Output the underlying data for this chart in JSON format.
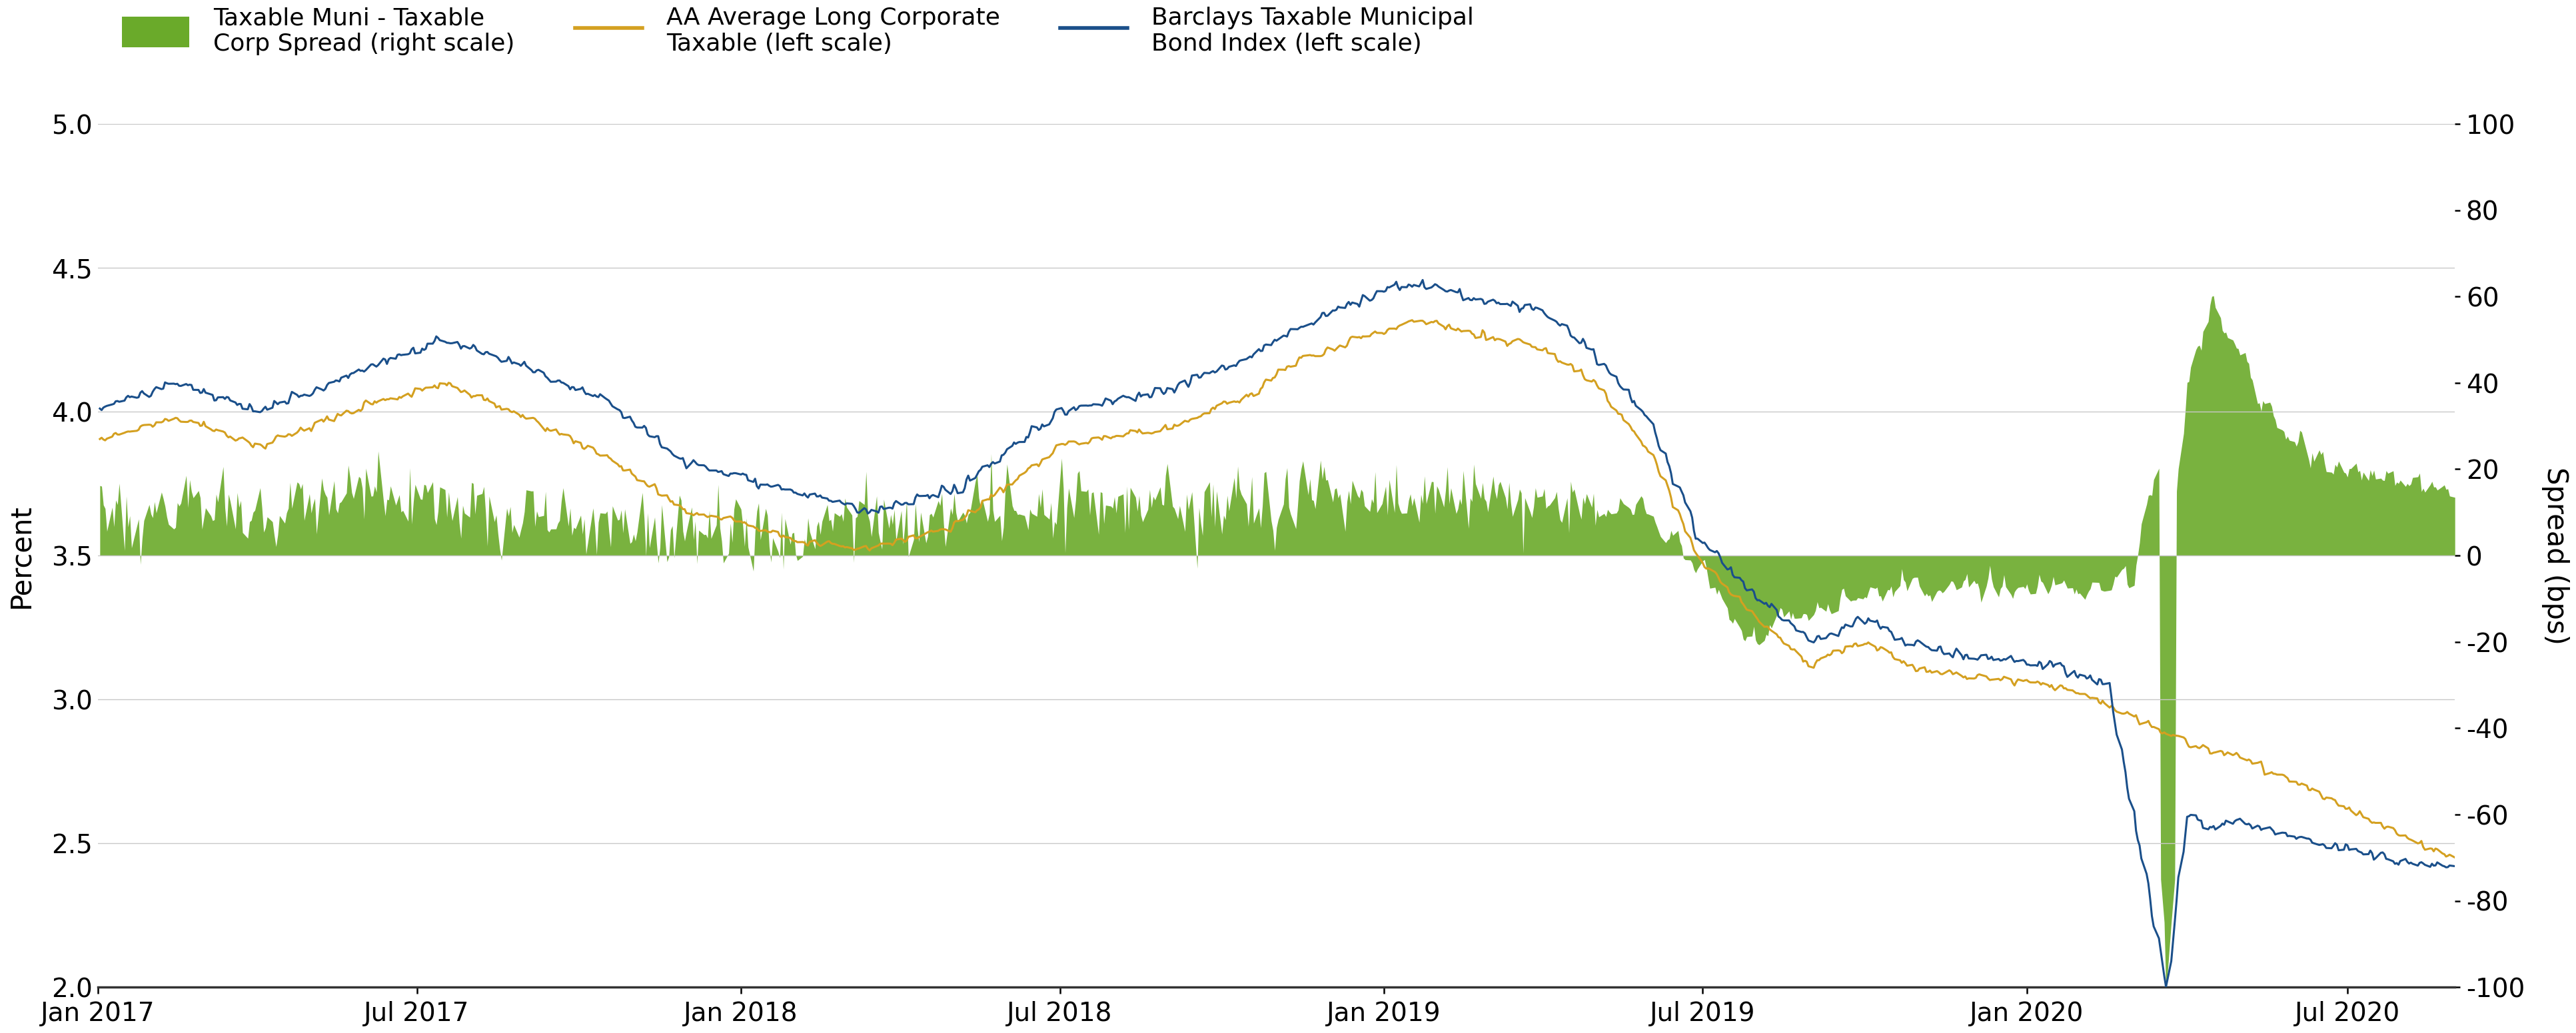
{
  "ylabel_left": "Percent",
  "ylabel_right": "Spread (bps)",
  "ylim_left": [
    2.0,
    5.0
  ],
  "ylim_right": [
    -100,
    100
  ],
  "yticks_left": [
    2.0,
    2.5,
    3.0,
    3.5,
    4.0,
    4.5,
    5.0
  ],
  "yticks_right": [
    -100,
    -80,
    -60,
    -40,
    -20,
    0,
    20,
    40,
    60,
    80,
    100
  ],
  "color_muni": "#1a4f8a",
  "color_corp": "#d4a020",
  "color_spread": "#6aaa2a",
  "background_color": "#ffffff",
  "grid_color": "#c8c8c8",
  "legend_green_label": "Taxable Muni - Taxable\nCorp Spread (right scale)",
  "legend_orange_label": "AA Average Long Corporate\nTaxable (left scale)",
  "legend_blue_label": "Barclays Taxable Municipal\nBond Index (left scale)"
}
